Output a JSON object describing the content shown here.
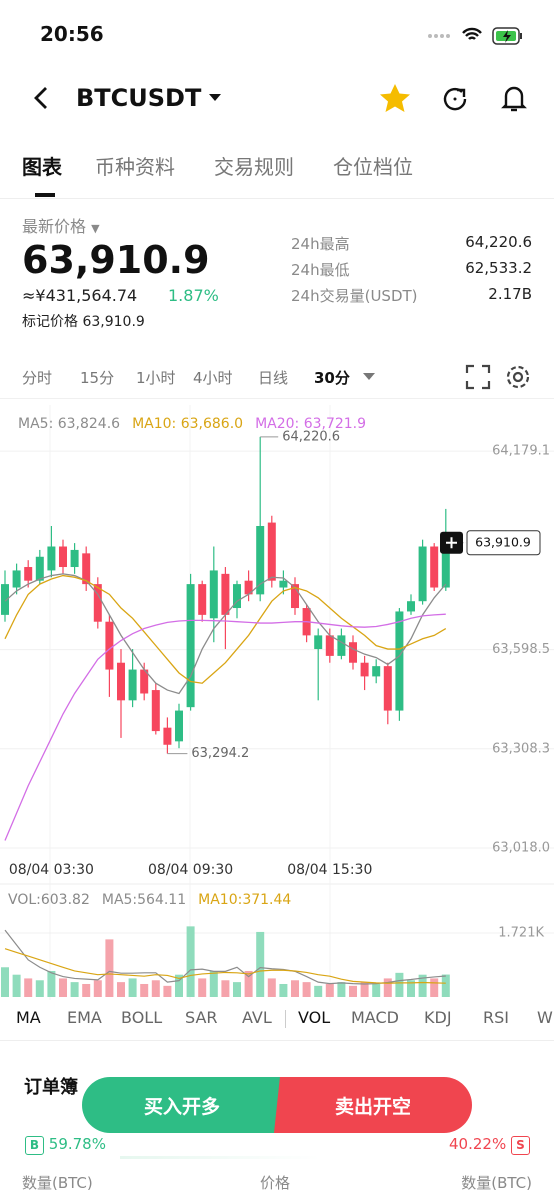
{
  "status_bar": {
    "time": "20:56"
  },
  "header": {
    "symbol": "BTCUSDT"
  },
  "tabs": [
    "图表",
    "币种资料",
    "交易规则",
    "仓位档位"
  ],
  "price_panel": {
    "label": "最新价格",
    "last": "63,910.9",
    "cny": "≈¥431,564.74",
    "change": "1.87%",
    "mark_label": "标记价格",
    "mark": "63,910.9",
    "stats": [
      {
        "label": "24h最高",
        "value": "64,220.6"
      },
      {
        "label": "24h最低",
        "value": "62,533.2"
      },
      {
        "label": "24h交易量(USDT)",
        "value": "2.17B"
      }
    ]
  },
  "intervals": [
    "分时",
    "15分",
    "1小时",
    "4小时",
    "日线",
    "30分"
  ],
  "chart_data": {
    "type": "candlestick",
    "up_color": "#2ebd85",
    "down_color": "#f6465d",
    "categories": [
      null,
      null,
      null,
      null,
      "08/04 03:30",
      null,
      null,
      null,
      null,
      null,
      null,
      null,
      null,
      null,
      null,
      null,
      "08/04 09:30",
      null,
      null,
      null,
      null,
      null,
      null,
      null,
      null,
      null,
      null,
      null,
      "08/04 15:30",
      null,
      null,
      null,
      null,
      null,
      null,
      null,
      null,
      null,
      null
    ],
    "open": [
      63700,
      63780,
      63840,
      63800,
      63830,
      63900,
      63840,
      63880,
      63790,
      63680,
      63560,
      63450,
      63540,
      63480,
      63370,
      63330,
      63430,
      63790,
      63690,
      63820,
      63720,
      63800,
      63760,
      63970,
      63780,
      63790,
      63720,
      63600,
      63640,
      63580,
      63620,
      63560,
      63520,
      63550,
      63420,
      63710,
      63740,
      63900,
      63780
    ],
    "high": [
      63830,
      63850,
      63860,
      63890,
      63960,
      63920,
      63910,
      63900,
      63810,
      63700,
      63600,
      63600,
      63560,
      63500,
      63400,
      63440,
      63820,
      63800,
      63900,
      63840,
      63800,
      63830,
      64220.6,
      63990,
      63830,
      63810,
      63730,
      63660,
      63660,
      63660,
      63640,
      63580,
      63570,
      63560,
      63720,
      63760,
      63920,
      63910,
      64010
    ],
    "low": [
      63680,
      63760,
      63780,
      63790,
      63810,
      63820,
      63820,
      63770,
      63660,
      63460,
      63340,
      63430,
      63450,
      63350,
      63294.2,
      63310,
      63420,
      63680,
      63620,
      63600,
      63690,
      63740,
      63740,
      63780,
      63760,
      63700,
      63620,
      63450,
      63560,
      63570,
      63540,
      63480,
      63500,
      63380,
      63390,
      63700,
      63730,
      63770,
      63770
    ],
    "close": [
      63790,
      63830,
      63800,
      63870,
      63900,
      63840,
      63890,
      63790,
      63680,
      63540,
      63450,
      63540,
      63470,
      63360,
      63320,
      63420,
      63790,
      63700,
      63830,
      63700,
      63790,
      63760,
      63960,
      63800,
      63800,
      63720,
      63640,
      63640,
      63580,
      63640,
      63560,
      63520,
      63550,
      63420,
      63710,
      63740,
      63900,
      63780,
      63910.9
    ],
    "ylim": [
      62988.7,
      64314.0
    ],
    "yticks": [
      {
        "value": 64179.1,
        "label": "64,179.1"
      },
      {
        "value": 63598.5,
        "label": "63,598.5"
      },
      {
        "value": 63308.3,
        "label": "63,308.3"
      },
      {
        "value": 63018.0,
        "label": "63,018.0"
      }
    ],
    "grid": true,
    "high_label": "64,220.6",
    "low_label": "63,294.2",
    "last_label": "63,910.9",
    "ma_series": [
      {
        "name": "MA5: 63,824.6",
        "color": "#8c8c8c",
        "values": [
          63740,
          63770,
          63790,
          63805,
          63815,
          63820,
          63815,
          63800,
          63760,
          63700,
          63640,
          63590,
          63540,
          63500,
          63480,
          63470,
          63520,
          63600,
          63660,
          63700,
          63740,
          63760,
          63790,
          63810,
          63808,
          63780,
          63730,
          63680,
          63640,
          63620,
          63600,
          63585,
          63575,
          63555,
          63580,
          63630,
          63700,
          63750,
          63790
        ]
      },
      {
        "name": "MA10: 63,686.0",
        "color": "#d9a514",
        "values": [
          63630,
          63700,
          63760,
          63790,
          63805,
          63815,
          63810,
          63800,
          63780,
          63760,
          63720,
          63690,
          63650,
          63610,
          63570,
          63530,
          63505,
          63500,
          63530,
          63560,
          63600,
          63640,
          63690,
          63740,
          63770,
          63780,
          63770,
          63750,
          63720,
          63690,
          63665,
          63640,
          63610,
          63600,
          63600,
          63615,
          63630,
          63640,
          63660
        ]
      },
      {
        "name": "MA20: 63,721.9",
        "color": "#d36ee6",
        "values": [
          63040,
          63120,
          63200,
          63270,
          63340,
          63410,
          63470,
          63520,
          63570,
          63600,
          63625,
          63645,
          63660,
          63670,
          63678,
          63682,
          63684,
          63684,
          63683,
          63682,
          63680,
          63678,
          63676,
          63676,
          63678,
          63680,
          63680,
          63676,
          63672,
          63668,
          63665,
          63664,
          63666,
          63672,
          63680,
          63690,
          63697,
          63700,
          63702
        ]
      }
    ],
    "volume": {
      "legend": "VOL:603.82",
      "values": [
        800,
        600,
        500,
        450,
        700,
        500,
        400,
        350,
        450,
        1550,
        400,
        500,
        350,
        450,
        300,
        600,
        1900,
        500,
        700,
        450,
        400,
        700,
        1750,
        500,
        350,
        450,
        400,
        300,
        350,
        400,
        300,
        400,
        350,
        500,
        650,
        450,
        600,
        500,
        603.82
      ],
      "ylim": [
        0,
        2125
      ],
      "yticks": [
        {
          "value": 1721,
          "label": "1.721K"
        }
      ],
      "ma_series": [
        {
          "name": "MA5:564.11",
          "color": "#8c8c8c",
          "values": [
            1800,
            1400,
            1000,
            800,
            650,
            550,
            500,
            480,
            460,
            690,
            640,
            640,
            650,
            650,
            400,
            440,
            730,
            750,
            690,
            690,
            800,
            550,
            790,
            760,
            740,
            690,
            550,
            400,
            360,
            380,
            360,
            350,
            360,
            390,
            440,
            470,
            510,
            540,
            564.11
          ]
        },
        {
          "name": "MA10:371.44",
          "color": "#d9a514",
          "values": [
            1300,
            1200,
            1100,
            1000,
            900,
            800,
            700,
            650,
            600,
            620,
            600,
            580,
            560,
            600,
            580,
            500,
            580,
            620,
            640,
            660,
            650,
            620,
            700,
            720,
            720,
            700,
            660,
            600,
            560,
            480,
            420,
            400,
            380,
            370,
            380,
            380,
            390,
            380,
            371.44
          ]
        }
      ]
    }
  },
  "indicators": [
    "MA",
    "EMA",
    "BOLL",
    "SAR",
    "AVL",
    "VOL",
    "MACD",
    "KDJ",
    "RSI",
    "W"
  ],
  "order_book": {
    "title": "订单簿",
    "buy_button": "买入开多",
    "sell_button": "卖出开空",
    "buy_badge": "B",
    "buy_ratio": "59.78%",
    "sell_ratio": "40.22%",
    "sell_badge": "S",
    "columns": [
      "数量(BTC)",
      "价格",
      "数量(BTC)"
    ]
  }
}
